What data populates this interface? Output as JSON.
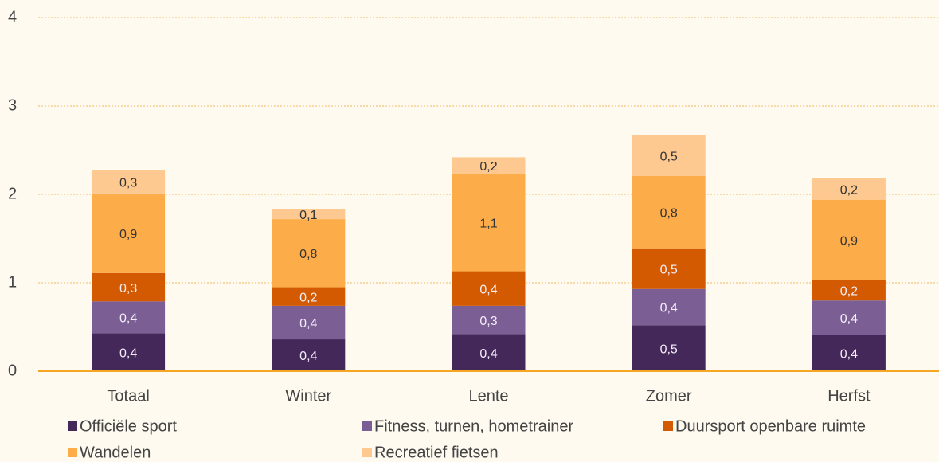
{
  "chart_data": {
    "type": "stacked_bar",
    "categories": [
      "Totaal",
      "Winter",
      "Lente",
      "Zomer",
      "Herfst"
    ],
    "series": [
      {
        "name": "Officiële sport",
        "color": "#45285a",
        "values": [
          0.43,
          0.36,
          0.42,
          0.52,
          0.41
        ],
        "value_labels": [
          "0,4",
          "0,4",
          "0,4",
          "0,5",
          "0,4"
        ]
      },
      {
        "name": "Fitness, turnen, hometrainer",
        "color": "#7a5e94",
        "values": [
          0.36,
          0.38,
          0.32,
          0.41,
          0.39
        ],
        "value_labels": [
          "0,4",
          "0,4",
          "0,3",
          "0,4",
          "0,4"
        ]
      },
      {
        "name": "Duursport openbare ruimte",
        "color": "#d35a00",
        "values": [
          0.32,
          0.21,
          0.39,
          0.46,
          0.23
        ],
        "value_labels": [
          "0,3",
          "0,2",
          "0,4",
          "0,5",
          "0,2"
        ]
      },
      {
        "name": "Wandelen",
        "color": "#fdac4a",
        "values": [
          0.9,
          0.77,
          1.1,
          0.82,
          0.91
        ],
        "value_labels": [
          "0,9",
          "0,8",
          "1,1",
          "0,8",
          "0,9"
        ]
      },
      {
        "name": "Recreatief fietsen",
        "color": "#fdc990",
        "values": [
          0.26,
          0.11,
          0.19,
          0.46,
          0.24
        ],
        "value_labels": [
          "0,3",
          "0,1",
          "0,2",
          "0,5",
          "0,2"
        ]
      }
    ],
    "ylim": [
      0,
      4
    ],
    "yticks": [
      0,
      1,
      2,
      3,
      4
    ],
    "grid": true
  }
}
